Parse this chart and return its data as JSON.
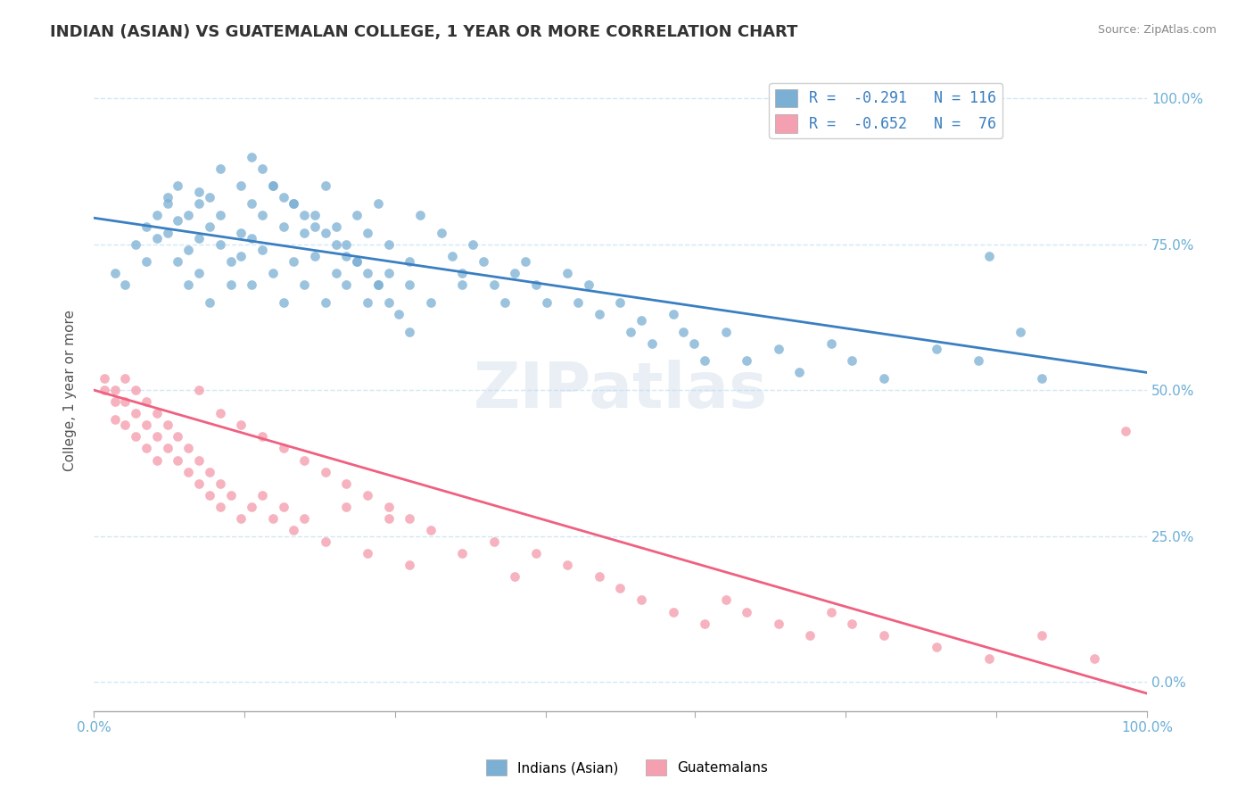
{
  "title": "INDIAN (ASIAN) VS GUATEMALAN COLLEGE, 1 YEAR OR MORE CORRELATION CHART",
  "source_text": "Source: ZipAtlas.com",
  "ylabel": "College, 1 year or more",
  "x_min": 0.0,
  "x_max": 1.0,
  "y_min": -0.05,
  "y_max": 1.05,
  "x_ticks": [
    0.0,
    0.143,
    0.286,
    0.429,
    0.571,
    0.714,
    0.857,
    1.0
  ],
  "x_tick_labels": [
    "0.0%",
    "",
    "",
    "",
    "",
    "",
    "",
    "100.0%"
  ],
  "y_ticks": [
    0.0,
    0.25,
    0.5,
    0.75,
    1.0
  ],
  "y_tick_labels": [
    "0.0%",
    "25.0%",
    "50.0%",
    "75.0%",
    "100.0%"
  ],
  "legend_label1": "R =  -0.291   N = 116",
  "legend_label2": "R =  -0.652   N =  76",
  "color_blue": "#7bafd4",
  "color_pink": "#f4a0b0",
  "color_blue_line": "#3a7fc1",
  "color_pink_line": "#f06080",
  "color_title": "#333333",
  "color_source": "#888888",
  "color_axis_text": "#6baed6",
  "color_grid": "#d0e8f8",
  "background_color": "#ffffff",
  "blue_scatter_x": [
    0.02,
    0.03,
    0.04,
    0.05,
    0.05,
    0.06,
    0.06,
    0.07,
    0.07,
    0.07,
    0.08,
    0.08,
    0.08,
    0.09,
    0.09,
    0.09,
    0.1,
    0.1,
    0.1,
    0.1,
    0.11,
    0.11,
    0.11,
    0.12,
    0.12,
    0.12,
    0.13,
    0.13,
    0.14,
    0.14,
    0.14,
    0.15,
    0.15,
    0.15,
    0.16,
    0.16,
    0.17,
    0.17,
    0.18,
    0.18,
    0.19,
    0.19,
    0.2,
    0.2,
    0.21,
    0.21,
    0.22,
    0.22,
    0.23,
    0.23,
    0.24,
    0.24,
    0.25,
    0.25,
    0.26,
    0.26,
    0.27,
    0.27,
    0.28,
    0.28,
    0.3,
    0.3,
    0.31,
    0.32,
    0.33,
    0.34,
    0.35,
    0.35,
    0.36,
    0.37,
    0.38,
    0.39,
    0.4,
    0.41,
    0.42,
    0.43,
    0.45,
    0.46,
    0.47,
    0.48,
    0.5,
    0.51,
    0.52,
    0.53,
    0.55,
    0.56,
    0.57,
    0.58,
    0.6,
    0.62,
    0.65,
    0.67,
    0.7,
    0.72,
    0.75,
    0.8,
    0.84,
    0.85,
    0.88,
    0.9,
    0.15,
    0.16,
    0.17,
    0.18,
    0.19,
    0.2,
    0.21,
    0.22,
    0.23,
    0.24,
    0.25,
    0.26,
    0.27,
    0.28,
    0.29,
    0.3
  ],
  "blue_scatter_y": [
    0.7,
    0.68,
    0.75,
    0.72,
    0.78,
    0.8,
    0.76,
    0.82,
    0.77,
    0.83,
    0.85,
    0.72,
    0.79,
    0.68,
    0.74,
    0.8,
    0.82,
    0.76,
    0.84,
    0.7,
    0.78,
    0.83,
    0.65,
    0.8,
    0.75,
    0.88,
    0.72,
    0.68,
    0.85,
    0.77,
    0.73,
    0.82,
    0.76,
    0.68,
    0.8,
    0.74,
    0.85,
    0.7,
    0.78,
    0.65,
    0.82,
    0.72,
    0.77,
    0.68,
    0.8,
    0.73,
    0.85,
    0.65,
    0.78,
    0.7,
    0.75,
    0.68,
    0.8,
    0.72,
    0.77,
    0.65,
    0.82,
    0.68,
    0.75,
    0.7,
    0.72,
    0.68,
    0.8,
    0.65,
    0.77,
    0.73,
    0.7,
    0.68,
    0.75,
    0.72,
    0.68,
    0.65,
    0.7,
    0.72,
    0.68,
    0.65,
    0.7,
    0.65,
    0.68,
    0.63,
    0.65,
    0.6,
    0.62,
    0.58,
    0.63,
    0.6,
    0.58,
    0.55,
    0.6,
    0.55,
    0.57,
    0.53,
    0.58,
    0.55,
    0.52,
    0.57,
    0.55,
    0.73,
    0.6,
    0.52,
    0.9,
    0.88,
    0.85,
    0.83,
    0.82,
    0.8,
    0.78,
    0.77,
    0.75,
    0.73,
    0.72,
    0.7,
    0.68,
    0.65,
    0.63,
    0.6
  ],
  "pink_scatter_x": [
    0.01,
    0.01,
    0.02,
    0.02,
    0.02,
    0.03,
    0.03,
    0.03,
    0.04,
    0.04,
    0.04,
    0.05,
    0.05,
    0.05,
    0.06,
    0.06,
    0.06,
    0.07,
    0.07,
    0.08,
    0.08,
    0.09,
    0.09,
    0.1,
    0.1,
    0.11,
    0.11,
    0.12,
    0.12,
    0.13,
    0.14,
    0.15,
    0.16,
    0.17,
    0.18,
    0.19,
    0.2,
    0.22,
    0.24,
    0.26,
    0.28,
    0.3,
    0.32,
    0.35,
    0.38,
    0.4,
    0.42,
    0.45,
    0.48,
    0.5,
    0.52,
    0.55,
    0.58,
    0.6,
    0.62,
    0.65,
    0.68,
    0.7,
    0.72,
    0.75,
    0.8,
    0.85,
    0.9,
    0.95,
    0.98,
    0.1,
    0.12,
    0.14,
    0.16,
    0.18,
    0.2,
    0.22,
    0.24,
    0.26,
    0.28,
    0.3
  ],
  "pink_scatter_y": [
    0.5,
    0.52,
    0.48,
    0.5,
    0.45,
    0.52,
    0.48,
    0.44,
    0.5,
    0.46,
    0.42,
    0.48,
    0.44,
    0.4,
    0.46,
    0.42,
    0.38,
    0.44,
    0.4,
    0.42,
    0.38,
    0.4,
    0.36,
    0.38,
    0.34,
    0.36,
    0.32,
    0.34,
    0.3,
    0.32,
    0.28,
    0.3,
    0.32,
    0.28,
    0.3,
    0.26,
    0.28,
    0.24,
    0.3,
    0.22,
    0.28,
    0.2,
    0.26,
    0.22,
    0.24,
    0.18,
    0.22,
    0.2,
    0.18,
    0.16,
    0.14,
    0.12,
    0.1,
    0.14,
    0.12,
    0.1,
    0.08,
    0.12,
    0.1,
    0.08,
    0.06,
    0.04,
    0.08,
    0.04,
    0.43,
    0.5,
    0.46,
    0.44,
    0.42,
    0.4,
    0.38,
    0.36,
    0.34,
    0.32,
    0.3,
    0.28
  ],
  "blue_line_y_start": 0.795,
  "blue_line_y_end": 0.53,
  "pink_line_y_start": 0.5,
  "pink_line_y_end": -0.02,
  "dashed_line_y": 1.0,
  "watermark_text": "ZIPatlas",
  "watermark_color": "#c8d8e8",
  "watermark_alpha": 0.4,
  "bottom_legend_labels": [
    "Indians (Asian)",
    "Guatemalans"
  ]
}
